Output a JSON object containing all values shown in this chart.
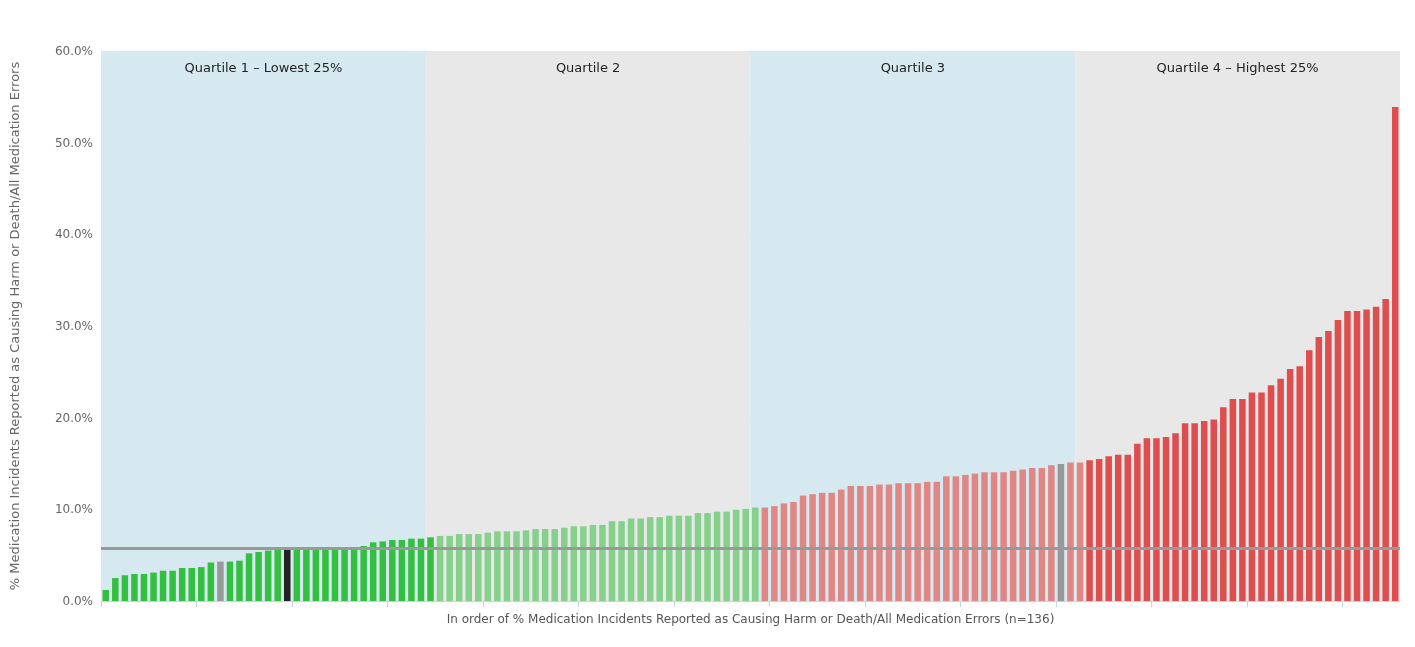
{
  "chart_data": {
    "type": "bar",
    "ylabel": "% Medication Incidents Reported as Causing Harm or Death/All Medication Errors",
    "xlabel": "In order of % Medication Incidents Reported as Causing Harm or Death/All Medication Errors (n=136)",
    "categories": [
      null,
      null,
      null,
      null,
      null,
      null,
      null,
      null,
      null,
      null,
      null,
      null,
      null,
      null,
      null,
      null,
      null,
      null,
      null,
      null,
      null,
      null,
      null,
      null,
      null,
      null,
      null,
      null,
      null,
      null,
      null,
      null,
      null,
      null,
      null,
      null,
      null,
      null,
      null,
      null,
      null,
      null,
      null,
      null,
      null,
      null,
      null,
      null,
      null,
      null,
      null,
      null,
      null,
      null,
      null,
      null,
      null,
      null,
      null,
      null,
      null,
      null,
      null,
      null,
      null,
      null,
      null,
      null,
      null,
      null,
      null,
      null,
      null,
      null,
      null,
      null,
      null,
      null,
      null,
      null,
      null,
      null,
      null,
      null,
      null,
      null,
      null,
      null,
      null,
      null,
      null,
      null,
      null,
      null,
      null,
      null,
      null,
      null,
      null,
      null,
      null,
      null,
      null,
      null,
      null,
      null,
      null,
      null,
      null,
      null,
      null,
      null,
      null,
      null,
      null,
      null,
      null,
      null,
      null,
      null,
      null,
      null,
      null,
      null,
      null,
      null,
      null,
      null,
      null,
      null,
      null,
      null,
      null,
      null,
      null,
      null
    ],
    "values": [
      1.2,
      2.5,
      2.8,
      2.95,
      2.95,
      3.1,
      3.3,
      3.3,
      3.6,
      3.6,
      3.7,
      4.2,
      4.3,
      4.3,
      4.4,
      5.2,
      5.35,
      5.5,
      5.65,
      5.65,
      5.8,
      5.8,
      5.8,
      5.8,
      5.8,
      5.8,
      5.8,
      6.0,
      6.4,
      6.5,
      6.65,
      6.65,
      6.8,
      6.8,
      6.95,
      7.1,
      7.1,
      7.3,
      7.3,
      7.3,
      7.45,
      7.6,
      7.6,
      7.6,
      7.7,
      7.85,
      7.85,
      7.85,
      8.0,
      8.15,
      8.15,
      8.3,
      8.3,
      8.7,
      8.7,
      9.0,
      9.0,
      9.15,
      9.15,
      9.3,
      9.3,
      9.3,
      9.6,
      9.6,
      9.75,
      9.75,
      9.95,
      10.05,
      10.2,
      10.2,
      10.35,
      10.65,
      10.8,
      11.5,
      11.65,
      11.8,
      11.8,
      12.15,
      12.55,
      12.55,
      12.55,
      12.7,
      12.7,
      12.85,
      12.85,
      12.85,
      13.0,
      13.0,
      13.6,
      13.6,
      13.75,
      13.9,
      14.05,
      14.05,
      14.05,
      14.2,
      14.35,
      14.5,
      14.5,
      14.8,
      14.95,
      15.1,
      15.1,
      15.35,
      15.5,
      15.8,
      15.95,
      15.95,
      17.15,
      17.75,
      17.75,
      17.9,
      18.3,
      19.4,
      19.4,
      19.65,
      19.8,
      21.15,
      22.05,
      22.05,
      22.75,
      22.75,
      23.55,
      24.25,
      25.3,
      25.6,
      27.35,
      28.8,
      29.45,
      30.65,
      31.65,
      31.65,
      31.8,
      32.1,
      32.95,
      53.9
    ],
    "colors": [
      "#33bf3f",
      "#33bf3f",
      "#33bf3f",
      "#33bf3f",
      "#33bf3f",
      "#33bf3f",
      "#33bf3f",
      "#33bf3f",
      "#33bf3f",
      "#33bf3f",
      "#33bf3f",
      "#33bf3f",
      "#999999",
      "#33bf3f",
      "#33bf3f",
      "#33bf3f",
      "#33bf3f",
      "#33bf3f",
      "#33bf3f",
      "#222222",
      "#33bf3f",
      "#33bf3f",
      "#33bf3f",
      "#33bf3f",
      "#33bf3f",
      "#33bf3f",
      "#33bf3f",
      "#33bf3f",
      "#33bf3f",
      "#33bf3f",
      "#33bf3f",
      "#33bf3f",
      "#33bf3f",
      "#33bf3f",
      "#33bf3f",
      "#85d08a",
      "#85d08a",
      "#85d08a",
      "#85d08a",
      "#85d08a",
      "#85d08a",
      "#85d08a",
      "#85d08a",
      "#85d08a",
      "#85d08a",
      "#85d08a",
      "#85d08a",
      "#85d08a",
      "#85d08a",
      "#85d08a",
      "#85d08a",
      "#85d08a",
      "#85d08a",
      "#85d08a",
      "#85d08a",
      "#85d08a",
      "#85d08a",
      "#85d08a",
      "#85d08a",
      "#85d08a",
      "#85d08a",
      "#85d08a",
      "#85d08a",
      "#85d08a",
      "#85d08a",
      "#85d08a",
      "#85d08a",
      "#85d08a",
      "#85d08a",
      "#df8784",
      "#df8784",
      "#df8784",
      "#df8784",
      "#df8784",
      "#df8784",
      "#df8784",
      "#df8784",
      "#df8784",
      "#df8784",
      "#df8784",
      "#df8784",
      "#df8784",
      "#df8784",
      "#df8784",
      "#df8784",
      "#df8784",
      "#df8784",
      "#df8784",
      "#df8784",
      "#df8784",
      "#df8784",
      "#df8784",
      "#df8784",
      "#df8784",
      "#df8784",
      "#df8784",
      "#df8784",
      "#df8784",
      "#df8784",
      "#df8784",
      "#999999",
      "#df8784",
      "#df8784",
      "#de4e4e",
      "#de4e4e",
      "#de4e4e",
      "#de4e4e",
      "#de4e4e",
      "#de4e4e",
      "#de4e4e",
      "#de4e4e",
      "#de4e4e",
      "#de4e4e",
      "#de4e4e",
      "#de4e4e",
      "#de4e4e",
      "#de4e4e",
      "#de4e4e",
      "#de4e4e",
      "#de4e4e",
      "#de4e4e",
      "#de4e4e",
      "#de4e4e",
      "#de4e4e",
      "#de4e4e",
      "#de4e4e",
      "#de4e4e",
      "#de4e4e",
      "#de4e4e",
      "#de4e4e",
      "#de4e4e",
      "#de4e4e",
      "#de4e4e",
      "#de4e4e",
      "#de4e4e",
      "#de4e4e"
    ],
    "ylim": [
      0,
      60
    ],
    "yticks": [
      {
        "value": 0,
        "label": "0.0%"
      },
      {
        "value": 10,
        "label": "10.0%"
      },
      {
        "value": 20,
        "label": "20.0%"
      },
      {
        "value": 30,
        "label": "30.0%"
      },
      {
        "value": 40,
        "label": "40.0%"
      },
      {
        "value": 50,
        "label": "50.0%"
      },
      {
        "value": 60,
        "label": "60.0%"
      }
    ],
    "grid": "y",
    "ref_lines": [
      {
        "axis": "y",
        "value": 5.8,
        "color": "#999999"
      }
    ],
    "annotations": [
      "Quartile 1 – Lowest 25%",
      "Quartile 2",
      "Quartile 3",
      "Quartile 4 – Highest 25%"
    ]
  }
}
